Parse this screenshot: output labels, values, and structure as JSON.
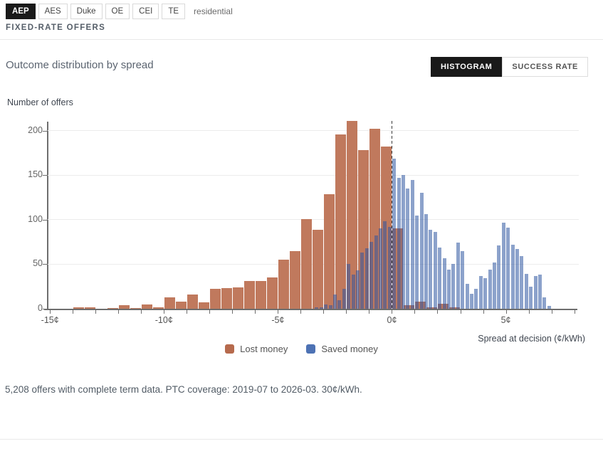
{
  "tabs": [
    {
      "label": "AEP",
      "active": true
    },
    {
      "label": "AES",
      "active": false
    },
    {
      "label": "Duke",
      "active": false
    },
    {
      "label": "OE",
      "active": false
    },
    {
      "label": "CEI",
      "active": false
    },
    {
      "label": "TE",
      "active": false
    }
  ],
  "subnav_label": "residential",
  "section_title": "FIXED-RATE OFFERS",
  "chart": {
    "title": "Outcome distribution by spread",
    "toggle": [
      {
        "label": "HISTOGRAM",
        "active": true
      },
      {
        "label": "SUCCESS RATE",
        "active": false
      }
    ]
  },
  "chart_data": {
    "type": "bar",
    "subtype": "overlapping-histograms",
    "title": "Outcome distribution by spread",
    "xlabel": "Spread at decision (¢/kWh)",
    "ylabel": "Number of offers",
    "xlim": [
      -15.1,
      8.2
    ],
    "ylim": [
      0,
      211
    ],
    "y_ticks": [
      0,
      50,
      100,
      150,
      200
    ],
    "x_ticks": [
      {
        "value": -15,
        "label": "-15¢"
      },
      {
        "value": -10,
        "label": "-10¢"
      },
      {
        "value": -5,
        "label": "-5¢"
      },
      {
        "value": 0,
        "label": "0¢"
      },
      {
        "value": 5,
        "label": "5¢"
      }
    ],
    "x_minor_ticks_from": -15,
    "x_minor_ticks_to": 8,
    "x_minor_tick_step": 1,
    "grid": true,
    "zero_reference_line": 0,
    "legend_position": "bottom-center",
    "series": [
      {
        "name": "Lost money",
        "color": "#c0795d",
        "legend_color": "#b66a4d",
        "bin_start": -14.0,
        "bin_width": 0.5,
        "values": [
          2,
          2,
          0,
          1,
          4,
          1,
          5,
          2,
          13,
          8,
          16,
          7,
          22,
          23,
          24,
          31,
          31,
          35,
          55,
          65,
          101,
          89,
          129,
          196,
          211,
          178,
          202,
          182,
          90,
          4,
          8,
          2,
          6,
          2
        ]
      },
      {
        "name": "Saved money",
        "color": "rgba(45,85,160,0.55)",
        "legend_color": "#4d72b4",
        "bin_start": -3.4,
        "bin_width": 0.2,
        "values": [
          2,
          2,
          5,
          4,
          16,
          10,
          22,
          50,
          38,
          43,
          63,
          68,
          75,
          82,
          90,
          98,
          92,
          169,
          147,
          150,
          135,
          145,
          105,
          130,
          106,
          89,
          86,
          69,
          57,
          44,
          50,
          74,
          65,
          28,
          17,
          22,
          37,
          34,
          44,
          52,
          71,
          97,
          91,
          72,
          67,
          59,
          39,
          25,
          37,
          38,
          13,
          3
        ]
      }
    ]
  },
  "footer": {
    "note": "5,208 offers with complete term data. PTC coverage: 2019-07 to 2026-03. 30¢/kWh."
  }
}
